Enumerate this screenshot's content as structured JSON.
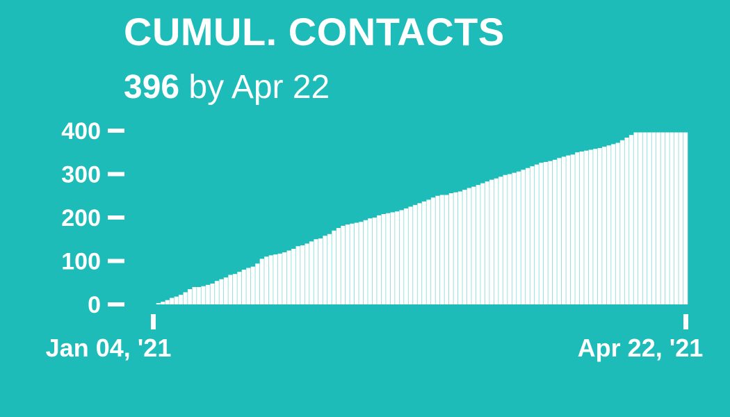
{
  "header": {
    "title": "CUMUL. CONTACTS",
    "subtitle_value": "396",
    "subtitle_text": " by Apr 22"
  },
  "colors": {
    "background": "#1dbcb8",
    "bars": "#ffffff"
  },
  "chart_data": {
    "type": "bar",
    "title": "CUMUL. CONTACTS",
    "subtitle": "396 by Apr 22",
    "xlabel": "",
    "ylabel": "",
    "ylim": [
      0,
      400
    ],
    "yticks": [
      0,
      100,
      200,
      300,
      400
    ],
    "xticks": [
      "Jan 04, '21",
      "Apr 22, '21"
    ],
    "x_start": "2021-01-04",
    "x_end": "2021-04-22",
    "grid": false,
    "legend": "none",
    "values": [
      0,
      3,
      6,
      10,
      15,
      18,
      22,
      28,
      35,
      40,
      40,
      42,
      45,
      48,
      54,
      58,
      62,
      68,
      70,
      75,
      80,
      84,
      87,
      94,
      105,
      110,
      113,
      115,
      117,
      120,
      124,
      128,
      134,
      136,
      140,
      145,
      150,
      152,
      158,
      162,
      170,
      176,
      181,
      184,
      186,
      188,
      190,
      194,
      198,
      200,
      205,
      208,
      210,
      212,
      214,
      217,
      221,
      225,
      229,
      233,
      237,
      241,
      246,
      250,
      252,
      252,
      256,
      258,
      260,
      264,
      268,
      271,
      275,
      279,
      283,
      287,
      290,
      294,
      298,
      300,
      303,
      306,
      310,
      314,
      318,
      322,
      326,
      328,
      330,
      333,
      337,
      340,
      343,
      345,
      350,
      352,
      354,
      356,
      358,
      360,
      363,
      366,
      369,
      372,
      378,
      384,
      390,
      396,
      396,
      396,
      396,
      396,
      396,
      396,
      396,
      396,
      396,
      396,
      396
    ]
  }
}
